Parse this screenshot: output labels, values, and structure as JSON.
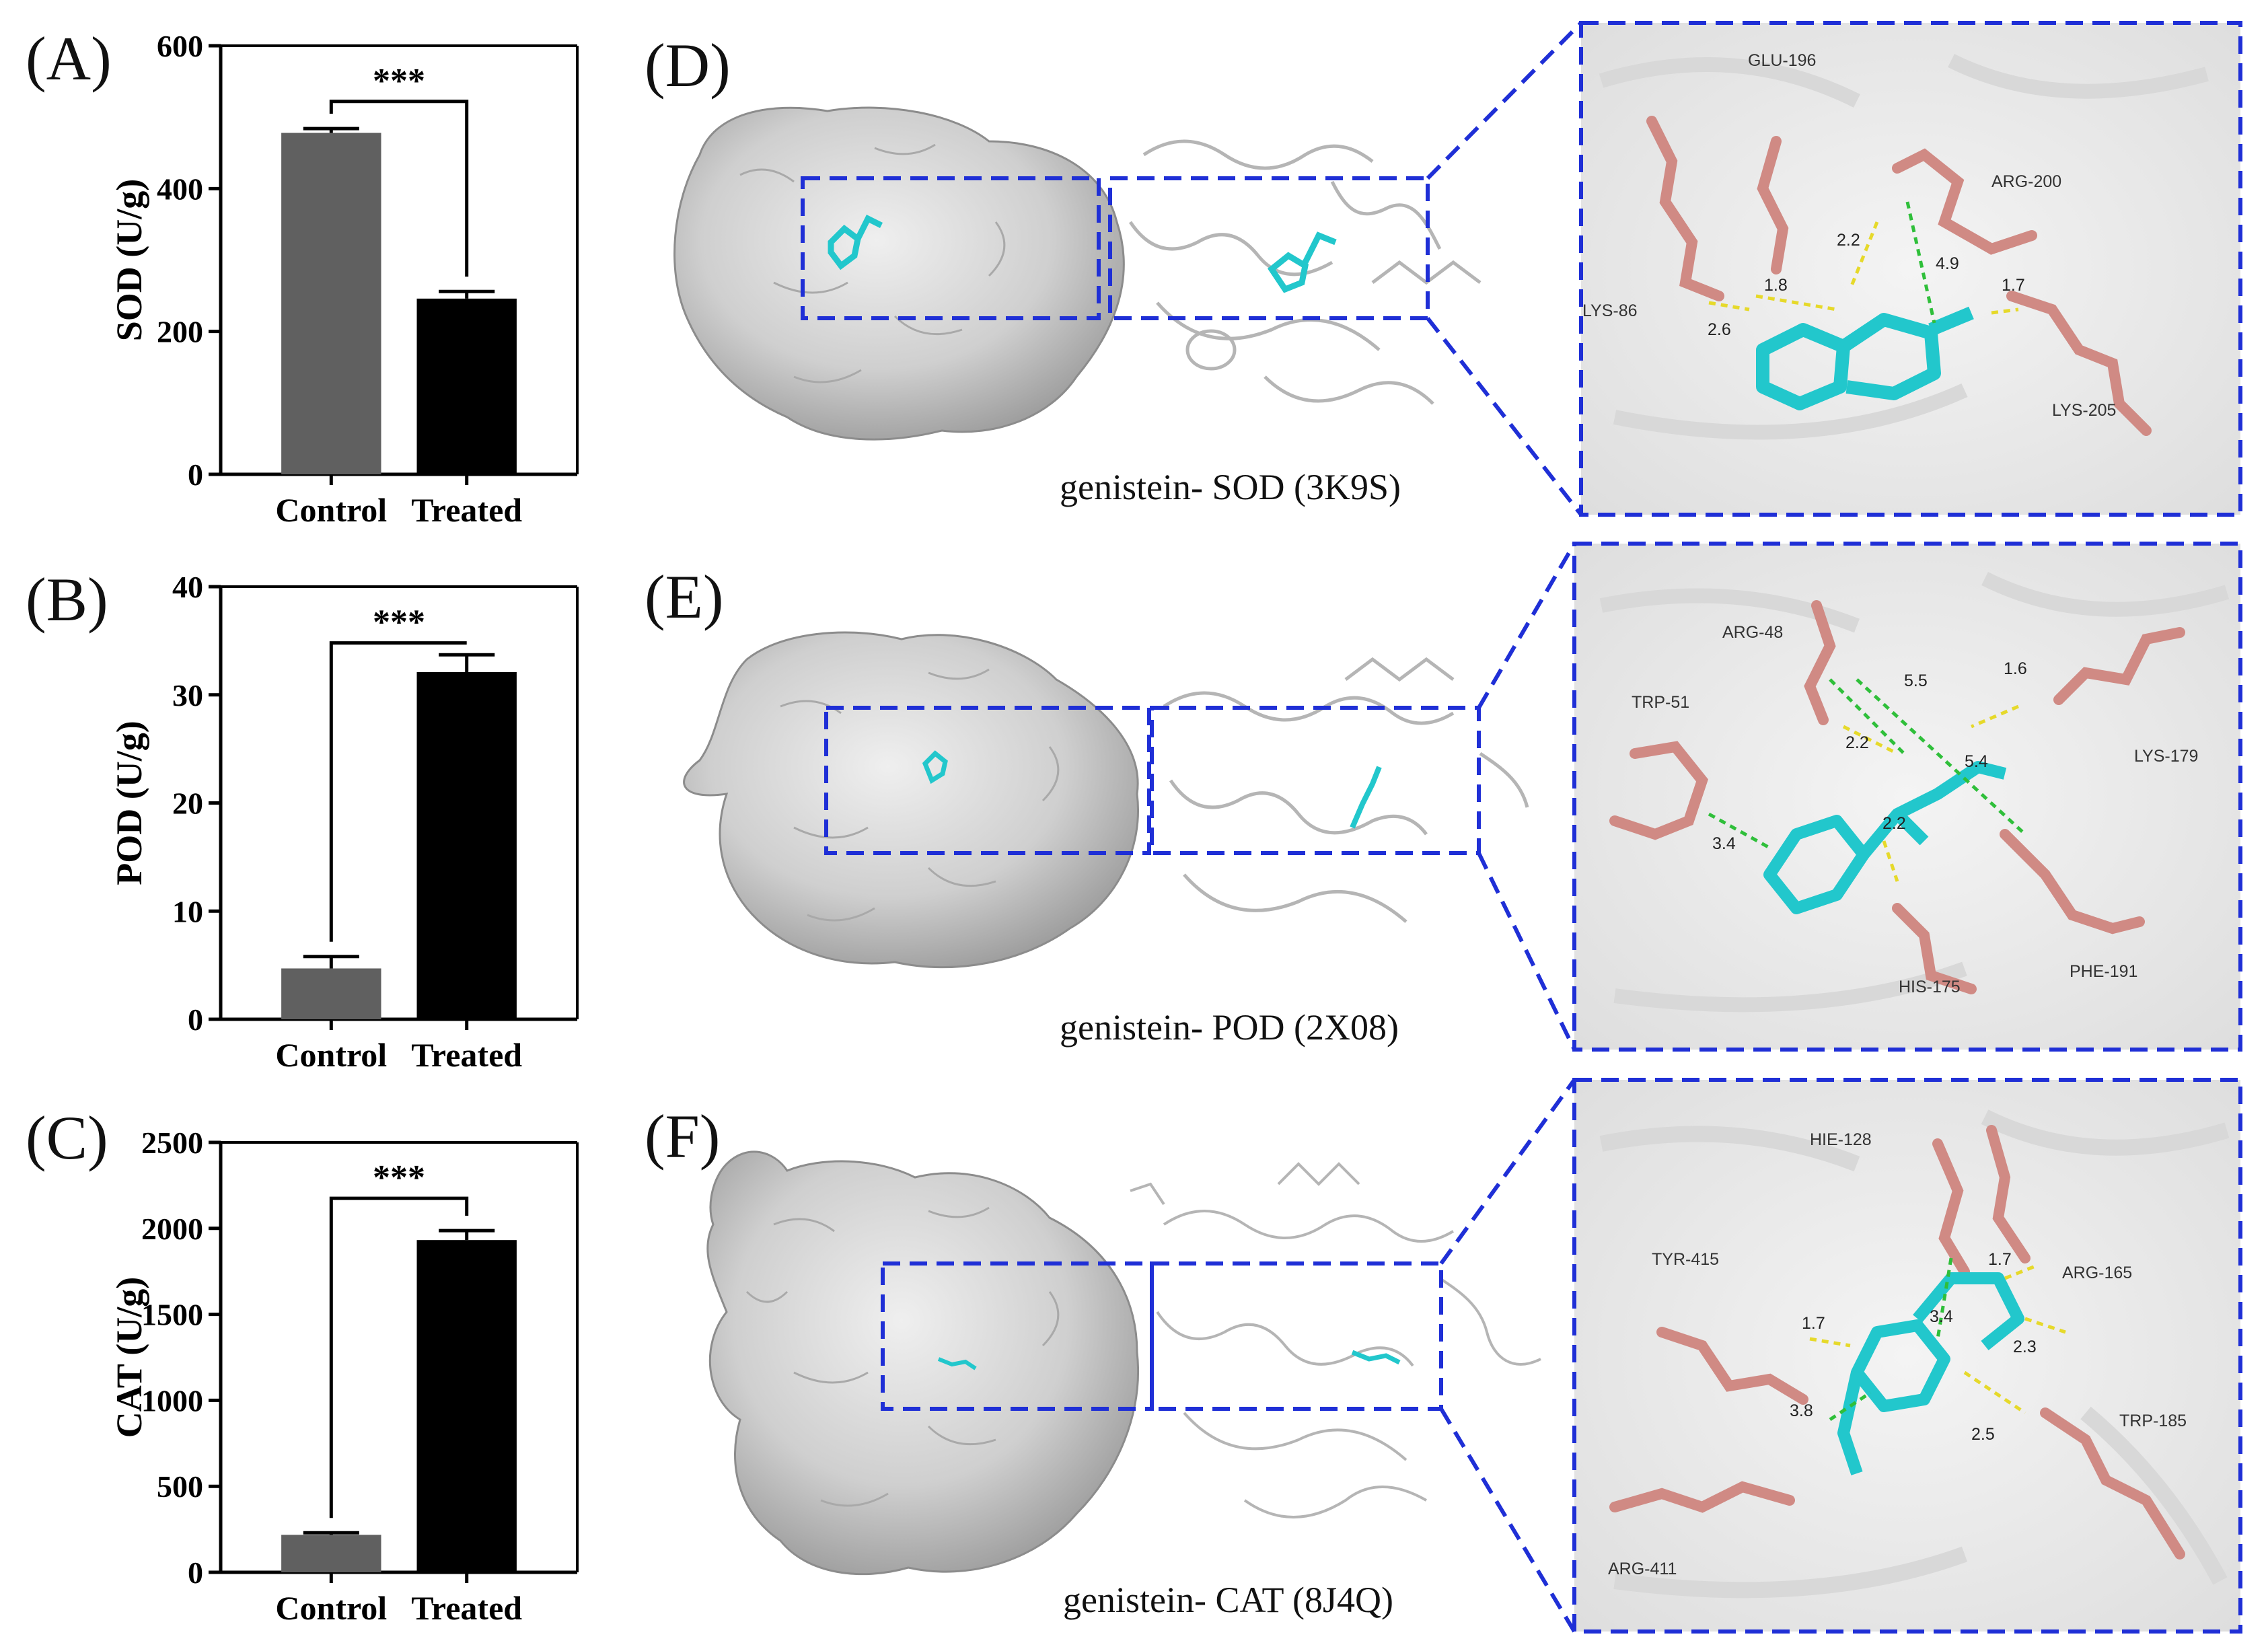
{
  "chart_data": [
    {
      "panel": "(A)",
      "type": "bar",
      "categories": [
        "Control",
        "Treated"
      ],
      "values": [
        478,
        246
      ],
      "errors": [
        6,
        10
      ],
      "ylabel": "SOD (U/g)",
      "ylim": [
        0,
        600
      ],
      "yticks": [
        "0",
        "200",
        "400",
        "600"
      ],
      "significance": "***",
      "colors": [
        "#606060",
        "#000000"
      ]
    },
    {
      "panel": "(B)",
      "type": "bar",
      "categories": [
        "Control",
        "Treated"
      ],
      "values": [
        4.7,
        32.1
      ],
      "errors": [
        1.1,
        1.6
      ],
      "ylabel": "POD (U/g)",
      "ylim": [
        0,
        40
      ],
      "yticks": [
        "0",
        "10",
        "20",
        "30",
        "40"
      ],
      "significance": "***",
      "colors": [
        "#606060",
        "#000000"
      ]
    },
    {
      "panel": "(C)",
      "type": "bar",
      "categories": [
        "Control",
        "Treated"
      ],
      "values": [
        218,
        1932
      ],
      "errors": [
        12,
        55
      ],
      "ylabel": "CAT (U/g)",
      "ylim": [
        0,
        2500
      ],
      "yticks": [
        "0",
        "500",
        "1000",
        "1500",
        "2000",
        "2500"
      ],
      "significance": "***",
      "colors": [
        "#606060",
        "#000000"
      ]
    }
  ],
  "docking": [
    {
      "panel": "(D)",
      "caption": "genistein- SOD (3K9S)",
      "residues": [
        "GLU-196",
        "ARG-200",
        "LYS-86",
        "LYS-205"
      ],
      "distances": [
        "2.2",
        "1.8",
        "4.9",
        "1.7",
        "2.6"
      ]
    },
    {
      "panel": "(E)",
      "caption": "genistein- POD (2X08)",
      "residues": [
        "ARG-48",
        "TRP-51",
        "LYS-179",
        "HIS-175",
        "PHE-191"
      ],
      "distances": [
        "5.5",
        "1.6",
        "2.2",
        "5.4",
        "2.2",
        "3.4"
      ]
    },
    {
      "panel": "(F)",
      "caption": "genistein- CAT (8J4Q)",
      "residues": [
        "HIE-128",
        "TYR-415",
        "ARG-165",
        "TRP-185",
        "ARG-411"
      ],
      "distances": [
        "1.7",
        "1.7",
        "3.4",
        "2.3",
        "2.5",
        "3.8"
      ]
    }
  ],
  "colors": {
    "dashed_box": "#1f2fd6",
    "ligand": "#22c7cc",
    "residue": "#d08a84",
    "hbond": "#e6d92a",
    "hydrophobic": "#2fbf3a",
    "protein_surface": "#c8c8c8"
  }
}
